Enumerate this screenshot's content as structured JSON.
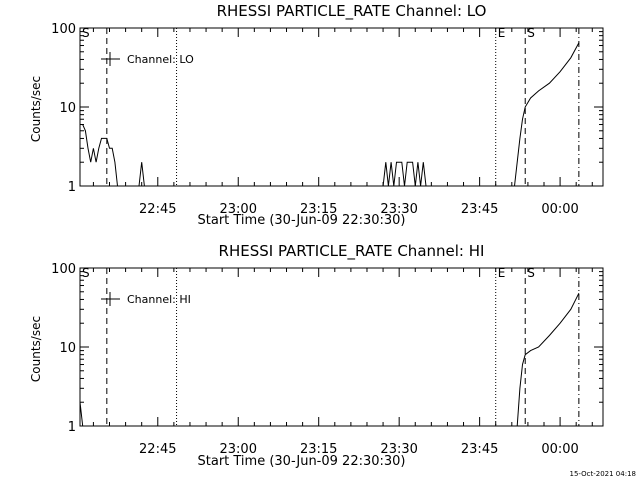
{
  "chart_data": [
    {
      "type": "line",
      "title": "RHESSI PARTICLE_RATE Channel: LO",
      "xlabel": "Start Time (30-Jun-09 22:30:30)",
      "ylabel": "Counts/sec",
      "y_scale": "log",
      "ylim": [
        1,
        100
      ],
      "xlim": [
        "22:30:30",
        "00:08:00"
      ],
      "x_ticks": [
        "22:45",
        "23:00",
        "23:15",
        "23:30",
        "23:45",
        "00:00"
      ],
      "y_ticks": [
        "1",
        "10",
        "100"
      ],
      "legend": "Channel: LO",
      "legend_position": "top-left",
      "vlines": [
        {
          "label": "S",
          "x": "22:30:30",
          "style": "dashed"
        },
        {
          "label": "",
          "x": "22:35:30",
          "style": "dashed"
        },
        {
          "label": "",
          "x": "22:48:30",
          "style": "dotted"
        },
        {
          "label": "E",
          "x": "23:48:00",
          "style": "dotted"
        },
        {
          "label": "S",
          "x": "23:53:30",
          "style": "dashed"
        },
        {
          "label": "",
          "x": "00:03:30",
          "style": "dashdot"
        }
      ],
      "series": [
        {
          "name": "Channel: LO",
          "points": [
            [
              "22:30:30",
              6
            ],
            [
              "22:31:00",
              6
            ],
            [
              "22:31:30",
              5
            ],
            [
              "22:32:00",
              3
            ],
            [
              "22:32:30",
              2
            ],
            [
              "22:33:00",
              3
            ],
            [
              "22:33:30",
              2
            ],
            [
              "22:34:00",
              3
            ],
            [
              "22:34:30",
              4
            ],
            [
              "22:35:00",
              4
            ],
            [
              "22:35:30",
              4
            ],
            [
              "22:36:00",
              3
            ],
            [
              "22:36:30",
              3
            ],
            [
              "22:37:00",
              2
            ],
            [
              "22:37:30",
              1
            ],
            [
              "22:41:30",
              1
            ],
            [
              "22:42:00",
              2
            ],
            [
              "22:42:30",
              1
            ],
            [
              "23:27:00",
              1
            ],
            [
              "23:27:30",
              2
            ],
            [
              "23:28:00",
              1
            ],
            [
              "23:28:30",
              2
            ],
            [
              "23:29:00",
              1
            ],
            [
              "23:29:30",
              2
            ],
            [
              "23:30:00",
              2
            ],
            [
              "23:30:30",
              2
            ],
            [
              "23:31:00",
              1
            ],
            [
              "23:31:30",
              2
            ],
            [
              "23:32:00",
              2
            ],
            [
              "23:32:30",
              2
            ],
            [
              "23:33:00",
              1
            ],
            [
              "23:33:30",
              2
            ],
            [
              "23:34:00",
              1
            ],
            [
              "23:34:30",
              2
            ],
            [
              "23:35:00",
              1
            ],
            [
              "23:51:30",
              1
            ],
            [
              "23:52:00",
              2
            ],
            [
              "23:52:30",
              4
            ],
            [
              "23:53:00",
              7
            ],
            [
              "23:53:30",
              10
            ],
            [
              "23:54:30",
              13
            ],
            [
              "23:56:00",
              16
            ],
            [
              "23:58:00",
              20
            ],
            [
              "00:00:00",
              28
            ],
            [
              "00:02:00",
              42
            ],
            [
              "00:03:30",
              65
            ]
          ]
        }
      ]
    },
    {
      "type": "line",
      "title": "RHESSI PARTICLE_RATE Channel: HI",
      "xlabel": "Start Time (30-Jun-09 22:30:30)",
      "ylabel": "Counts/sec",
      "y_scale": "log",
      "ylim": [
        1,
        100
      ],
      "xlim": [
        "22:30:30",
        "00:08:00"
      ],
      "x_ticks": [
        "22:45",
        "23:00",
        "23:15",
        "23:30",
        "23:45",
        "00:00"
      ],
      "y_ticks": [
        "1",
        "10",
        "100"
      ],
      "legend": "Channel: HI",
      "legend_position": "top-left",
      "vlines": [
        {
          "label": "S",
          "x": "22:30:30",
          "style": "dashed"
        },
        {
          "label": "",
          "x": "22:35:30",
          "style": "dashed"
        },
        {
          "label": "",
          "x": "22:48:30",
          "style": "dotted"
        },
        {
          "label": "E",
          "x": "23:48:00",
          "style": "dotted"
        },
        {
          "label": "S",
          "x": "23:53:30",
          "style": "dashed"
        },
        {
          "label": "",
          "x": "00:03:30",
          "style": "dashdot"
        }
      ],
      "series": [
        {
          "name": "Channel: HI",
          "points": [
            [
              "22:30:30",
              2
            ],
            [
              "22:31:00",
              1
            ],
            [
              "23:52:00",
              1
            ],
            [
              "23:52:30",
              3
            ],
            [
              "23:53:00",
              6
            ],
            [
              "23:53:30",
              8
            ],
            [
              "23:54:30",
              9
            ],
            [
              "23:56:00",
              10
            ],
            [
              "23:58:00",
              14
            ],
            [
              "00:00:00",
              20
            ],
            [
              "00:02:00",
              30
            ],
            [
              "00:03:30",
              48
            ]
          ]
        }
      ]
    }
  ],
  "footer_timestamp": "15-Oct-2021 04:18"
}
